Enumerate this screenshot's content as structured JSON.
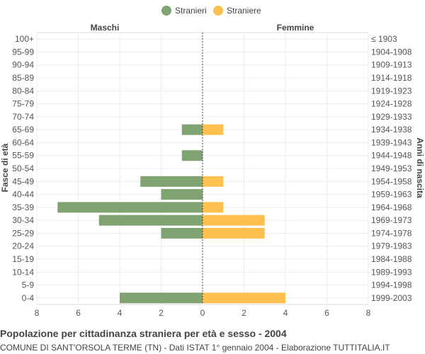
{
  "chart_data": {
    "type": "bar",
    "orientation": "horizontal-pyramid",
    "title": "Popolazione per cittadinanza straniera per età e sesso - 2004",
    "subtitle": "COMUNE DI SANT'ORSOLA TERME (TN) - Dati ISTAT 1° gennaio 2004 - Elaborazione TUTTITALIA.IT",
    "left_header": "Maschi",
    "right_header": "Femmine",
    "ylabel_left": "Fasce di età",
    "ylabel_right": "Anni di nascita",
    "xlim": [
      -8,
      8
    ],
    "x_ticks": [
      8,
      6,
      4,
      2,
      0,
      2,
      4,
      6,
      8
    ],
    "grid": true,
    "legend_position": "top-center",
    "categories": [
      "100+",
      "95-99",
      "90-94",
      "85-89",
      "80-84",
      "75-79",
      "70-74",
      "65-69",
      "60-64",
      "55-59",
      "50-54",
      "45-49",
      "40-44",
      "35-39",
      "30-34",
      "25-29",
      "20-24",
      "15-19",
      "10-14",
      "5-9",
      "0-4"
    ],
    "birth_years": [
      "≤ 1903",
      "1904-1908",
      "1909-1913",
      "1914-1918",
      "1919-1923",
      "1924-1928",
      "1929-1933",
      "1934-1938",
      "1939-1943",
      "1944-1948",
      "1949-1953",
      "1954-1958",
      "1959-1963",
      "1964-1968",
      "1969-1973",
      "1974-1978",
      "1979-1983",
      "1984-1988",
      "1989-1993",
      "1994-1998",
      "1999-2003"
    ],
    "series": [
      {
        "name": "Stranieri",
        "color": "#7fa371",
        "values": [
          0,
          0,
          0,
          0,
          0,
          0,
          0,
          1,
          0,
          1,
          0,
          3,
          2,
          7,
          5,
          2,
          0,
          0,
          0,
          0,
          4
        ]
      },
      {
        "name": "Straniere",
        "color": "#fec14f",
        "values": [
          0,
          0,
          0,
          0,
          0,
          0,
          0,
          1,
          0,
          0,
          0,
          1,
          0,
          1,
          3,
          3,
          0,
          0,
          0,
          0,
          4
        ]
      }
    ]
  }
}
